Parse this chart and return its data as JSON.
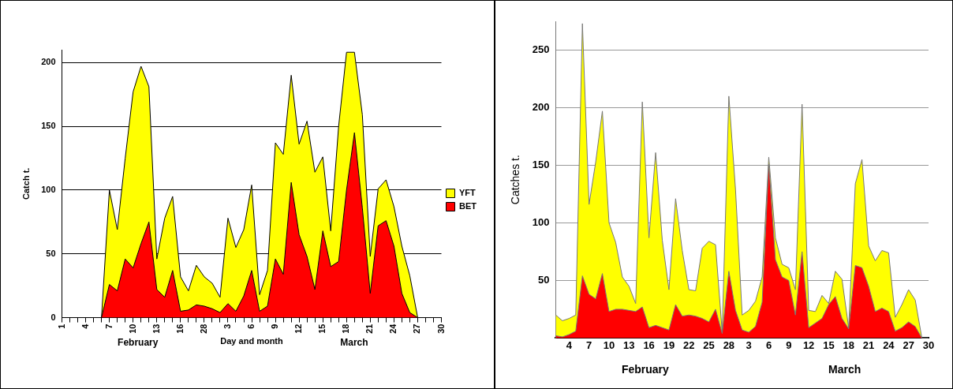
{
  "chart_data": [
    {
      "type": "area",
      "stacked": true,
      "xlabel": "Day and month",
      "ylabel": "Catch t.",
      "annotations": [
        "February",
        "March"
      ],
      "categories": [
        "1",
        null,
        null,
        "4",
        null,
        null,
        "7",
        null,
        null,
        "10",
        null,
        null,
        "13",
        null,
        null,
        "16",
        null,
        null,
        "28",
        null,
        null,
        "3",
        null,
        null,
        "6",
        null,
        null,
        "9",
        null,
        null,
        "12",
        null,
        null,
        "15",
        null,
        null,
        "18",
        null,
        null,
        "21",
        null,
        null,
        "24",
        null,
        null,
        "27",
        null,
        null,
        "30"
      ],
      "series": [
        {
          "name": "BET",
          "color": "#ff0000",
          "values": [
            0,
            0,
            0,
            0,
            0,
            0,
            26,
            21,
            46,
            39,
            58,
            75,
            22,
            16,
            37,
            5,
            6,
            10,
            9,
            7,
            4,
            11,
            5,
            17,
            37,
            5,
            9,
            46,
            34,
            106,
            65,
            48,
            22,
            68,
            40,
            44,
            100,
            145,
            86,
            19,
            72,
            76,
            56,
            19,
            4,
            0,
            0,
            0,
            0
          ]
        },
        {
          "name": "YFT",
          "color": "#ffff00",
          "values": [
            0,
            0,
            0,
            0,
            0,
            0,
            74,
            48,
            79,
            138,
            139,
            106,
            24,
            62,
            58,
            27,
            15,
            31,
            23,
            20,
            12,
            67,
            50,
            52,
            67,
            13,
            28,
            91,
            94,
            84,
            71,
            106,
            92,
            58,
            28,
            106,
            108,
            63,
            73,
            29,
            29,
            32,
            31,
            37,
            29,
            0,
            0,
            0,
            0
          ]
        }
      ],
      "ylim": [
        0,
        210
      ],
      "yticks": [
        0,
        50,
        100,
        150,
        200
      ],
      "grid": "y",
      "legend": "right"
    },
    {
      "type": "area",
      "stacked": true,
      "ylabel": "Catches t.",
      "annotations": [
        "February",
        "March"
      ],
      "categories": [
        null,
        null,
        "4",
        null,
        null,
        "7",
        null,
        null,
        "10",
        null,
        null,
        "13",
        null,
        null,
        "16",
        null,
        null,
        "19",
        null,
        null,
        "22",
        null,
        null,
        "25",
        null,
        null,
        "28",
        null,
        null,
        "3",
        null,
        null,
        "6",
        null,
        null,
        "9",
        null,
        null,
        "12",
        null,
        null,
        "15",
        null,
        null,
        "18",
        null,
        null,
        "21",
        null,
        null,
        "24",
        null,
        null,
        "27",
        null,
        null,
        "30"
      ],
      "series": [
        {
          "color": "#ff0000",
          "values": [
            2,
            1,
            3,
            6,
            54,
            38,
            34,
            56,
            23,
            25,
            25,
            24,
            23,
            27,
            9,
            11,
            9,
            7,
            29,
            19,
            20,
            19,
            17,
            14,
            25,
            4,
            58,
            24,
            7,
            5,
            10,
            31,
            151,
            68,
            53,
            50,
            20,
            75,
            9,
            13,
            17,
            29,
            36,
            17,
            8,
            63,
            61,
            45,
            23,
            26,
            23,
            6,
            9,
            14,
            10,
            0,
            0
          ]
        },
        {
          "color": "#ffff00",
          "values": [
            18,
            14,
            14,
            14,
            219,
            78,
            119,
            141,
            77,
            58,
            28,
            21,
            7,
            178,
            78,
            150,
            76,
            35,
            92,
            57,
            22,
            22,
            61,
            70,
            56,
            1,
            152,
            105,
            13,
            19,
            22,
            22,
            6,
            19,
            11,
            11,
            22,
            128,
            15,
            10,
            20,
            1,
            22,
            34,
            1,
            71,
            94,
            35,
            44,
            50,
            51,
            12,
            20,
            28,
            23,
            0,
            0
          ]
        }
      ],
      "ylim": [
        0,
        275
      ],
      "yticks": [
        50,
        100,
        150,
        200,
        250
      ],
      "grid": "y"
    }
  ]
}
